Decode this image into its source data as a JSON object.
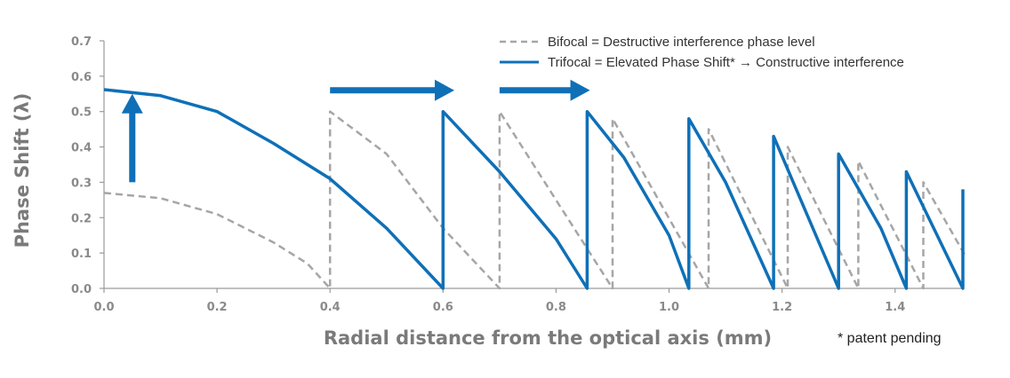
{
  "chart_data": {
    "type": "line",
    "xlabel": "Radial distance from the optical axis (mm)",
    "ylabel": "Phase Shift (λ)",
    "xlim": [
      0.0,
      1.55
    ],
    "ylim": [
      0.0,
      0.7
    ],
    "x_ticks": [
      0.0,
      0.2,
      0.4,
      0.6,
      0.8,
      1.0,
      1.2,
      1.4
    ],
    "x_tick_labels": [
      "0.0",
      "0.2",
      "0.4",
      "0.6",
      "0.8",
      "1.0",
      "1.2",
      "1.4"
    ],
    "y_ticks": [
      0.0,
      0.1,
      0.2,
      0.3,
      0.4,
      0.5,
      0.6,
      0.7
    ],
    "y_tick_labels": [
      "0.0",
      "0.1",
      "0.2",
      "0.3",
      "0.4",
      "0.5",
      "0.6",
      "0.7"
    ],
    "grid": false,
    "legend_position": "top-right",
    "series": [
      {
        "name": "Bifocal = Destructive interference phase level",
        "style": "dashed",
        "color": "#a6a6a6",
        "points": [
          [
            0.0,
            0.27
          ],
          [
            0.1,
            0.255
          ],
          [
            0.2,
            0.21
          ],
          [
            0.3,
            0.13
          ],
          [
            0.36,
            0.07
          ],
          [
            0.4,
            0.0
          ],
          [
            0.4,
            0.5
          ],
          [
            0.5,
            0.38
          ],
          [
            0.6,
            0.17
          ],
          [
            0.7,
            0.0
          ],
          [
            0.7,
            0.5
          ],
          [
            0.8,
            0.25
          ],
          [
            0.9,
            0.0
          ],
          [
            0.9,
            0.48
          ],
          [
            1.07,
            0.0
          ],
          [
            1.07,
            0.45
          ],
          [
            1.21,
            0.0
          ],
          [
            1.21,
            0.4
          ],
          [
            1.335,
            0.0
          ],
          [
            1.335,
            0.36
          ],
          [
            1.45,
            0.0
          ],
          [
            1.45,
            0.3
          ],
          [
            1.525,
            0.09
          ]
        ]
      },
      {
        "name": "Trifocal = Elevated Phase Shift* → Constructive interference",
        "style": "solid",
        "color": "#0f70b7",
        "points": [
          [
            0.0,
            0.562
          ],
          [
            0.1,
            0.545
          ],
          [
            0.2,
            0.5
          ],
          [
            0.3,
            0.41
          ],
          [
            0.4,
            0.31
          ],
          [
            0.5,
            0.17
          ],
          [
            0.6,
            0.0
          ],
          [
            0.6,
            0.5
          ],
          [
            0.7,
            0.33
          ],
          [
            0.8,
            0.14
          ],
          [
            0.855,
            0.0
          ],
          [
            0.855,
            0.5
          ],
          [
            0.92,
            0.37
          ],
          [
            1.0,
            0.15
          ],
          [
            1.035,
            0.0
          ],
          [
            1.035,
            0.48
          ],
          [
            1.1,
            0.3
          ],
          [
            1.185,
            0.0
          ],
          [
            1.185,
            0.43
          ],
          [
            1.3,
            0.0
          ],
          [
            1.3,
            0.38
          ],
          [
            1.375,
            0.17
          ],
          [
            1.42,
            0.0
          ],
          [
            1.42,
            0.33
          ],
          [
            1.52,
            0.0
          ],
          [
            1.52,
            0.28
          ]
        ]
      }
    ],
    "annotations": [
      {
        "type": "arrow",
        "direction": "up",
        "from": [
          0.05,
          0.3
        ],
        "to": [
          0.05,
          0.55
        ],
        "color": "#0f70b7"
      },
      {
        "type": "arrow",
        "direction": "right",
        "from": [
          0.4,
          0.56
        ],
        "to": [
          0.62,
          0.56
        ],
        "color": "#0f70b7"
      },
      {
        "type": "arrow",
        "direction": "right",
        "from": [
          0.7,
          0.56
        ],
        "to": [
          0.86,
          0.56
        ],
        "color": "#0f70b7"
      }
    ],
    "footnote": "* patent pending"
  }
}
